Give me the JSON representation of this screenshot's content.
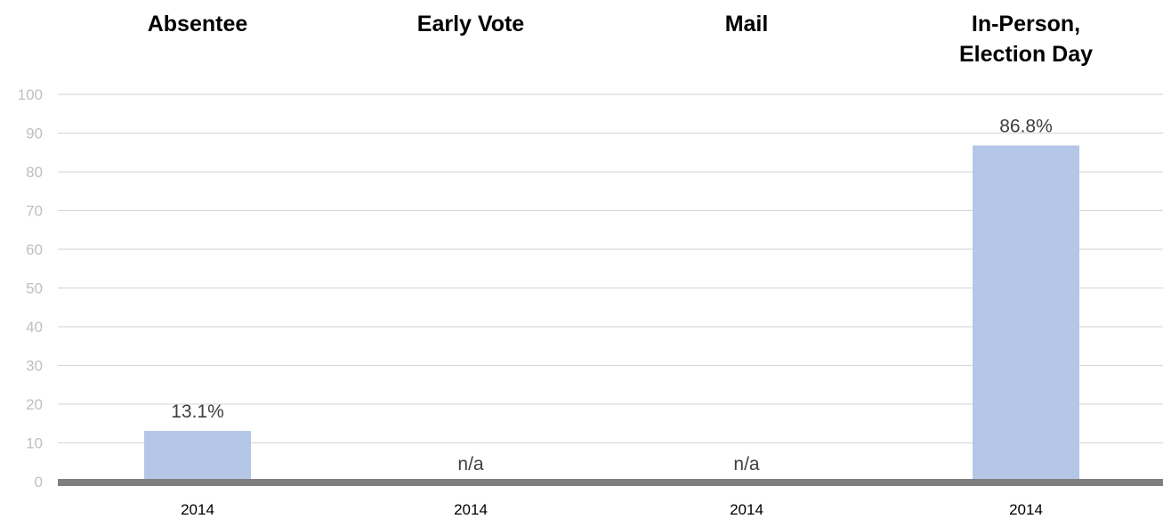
{
  "chart_data": {
    "type": "bar",
    "categories": [
      "Absentee",
      "Early Vote",
      "Mail",
      "In-Person, Election Day"
    ],
    "category_title_lines": [
      [
        "Absentee"
      ],
      [
        "Early Vote"
      ],
      [
        "Mail"
      ],
      [
        "In-Person,",
        "Election Day"
      ]
    ],
    "x_labels": [
      "2014",
      "2014",
      "2014",
      "2014"
    ],
    "values": [
      13.1,
      null,
      null,
      86.8
    ],
    "data_labels": [
      "13.1%",
      "n/a",
      "n/a",
      "86.8%"
    ],
    "ylim": [
      0,
      100
    ],
    "yticks": [
      0,
      10,
      20,
      30,
      40,
      50,
      60,
      70,
      80,
      90,
      100
    ],
    "grid": true,
    "legend": "none",
    "colors": {
      "bar": "#b4c7e7",
      "baseline": "#7f7f7f",
      "grid": "#d9d9d9",
      "tick_label": "#bfbfbf",
      "data_label": "#404040",
      "title": "#000000"
    }
  }
}
